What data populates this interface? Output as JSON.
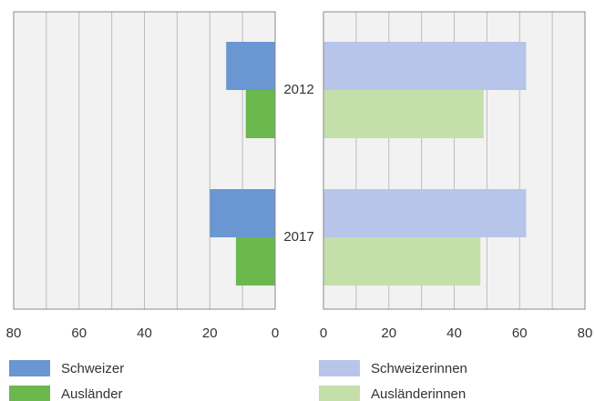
{
  "chart_data": [
    {
      "type": "bar",
      "orientation": "horizontal",
      "categories": [
        "2012",
        "2017"
      ],
      "series": [
        {
          "name": "Schweizer",
          "color": "#6a97d2",
          "values": [
            15,
            20
          ]
        },
        {
          "name": "Ausländer",
          "color": "#6ab84e",
          "values": [
            9,
            12
          ]
        }
      ],
      "xlim": [
        80,
        0
      ],
      "xticks": [
        80,
        60,
        40,
        20,
        0
      ],
      "minor_xticks": [
        70,
        50,
        30,
        10
      ],
      "grid": true,
      "legend": "bottom"
    },
    {
      "type": "bar",
      "orientation": "horizontal",
      "series": [
        {
          "name": "Schweizerinnen",
          "color": "#b7c5ea",
          "values": [
            62,
            62
          ]
        },
        {
          "name": "Ausländerinnen",
          "color": "#c4dfaa",
          "values": [
            49,
            48
          ]
        }
      ],
      "xlim": [
        0,
        80
      ],
      "xticks": [
        0,
        20,
        40,
        60,
        80
      ],
      "minor_xticks": [
        10,
        30,
        50,
        70
      ],
      "grid": true,
      "legend": "bottom"
    }
  ]
}
